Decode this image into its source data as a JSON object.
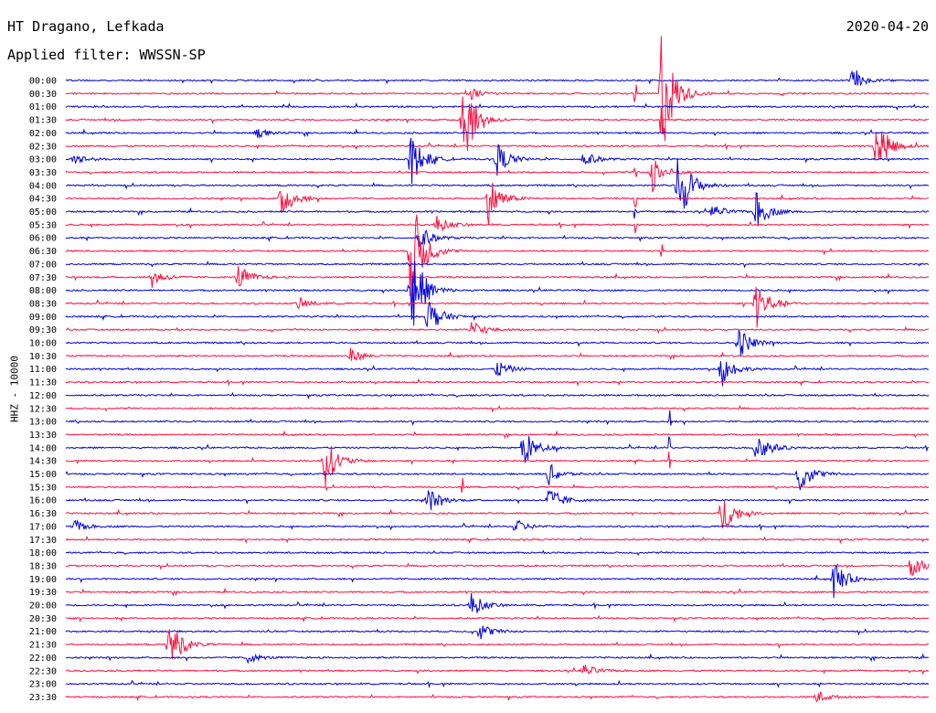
{
  "header": {
    "station": "HT Dragano, Lefkada",
    "filter": "Applied filter: WWSSN-SP",
    "date": "2020-04-20"
  },
  "side_label": "HHZ - 10000",
  "chart_data": {
    "type": "helicorder",
    "title": "HT Dragano, Lefkada",
    "subtitle": "Applied filter: WWSSN-SP",
    "date": "2020-04-20",
    "ylabel": "HHZ - 10000",
    "trace_colors": [
      "#0000e0",
      "#ff1040"
    ],
    "row_labels": [
      "00:00",
      "00:30",
      "01:00",
      "01:30",
      "02:00",
      "02:30",
      "03:00",
      "03:30",
      "04:00",
      "04:30",
      "05:00",
      "05:30",
      "06:00",
      "06:30",
      "07:00",
      "07:30",
      "08:00",
      "08:30",
      "09:00",
      "09:30",
      "10:00",
      "10:30",
      "11:00",
      "11:30",
      "12:00",
      "12:30",
      "13:00",
      "13:30",
      "14:00",
      "14:30",
      "15:00",
      "15:30",
      "16:00",
      "16:30",
      "17:00",
      "17:30",
      "18:00",
      "18:30",
      "19:00",
      "19:30",
      "20:00",
      "20:30",
      "21:00",
      "21:30",
      "22:00",
      "22:30",
      "23:00",
      "23:30"
    ],
    "events": [
      {
        "row": 0,
        "pos": 0.91,
        "amp": 14
      },
      {
        "row": 1,
        "pos": 0.69,
        "amp": 78
      },
      {
        "row": 1,
        "pos": 0.47,
        "amp": 6
      },
      {
        "row": 3,
        "pos": 0.46,
        "amp": 55
      },
      {
        "row": 4,
        "pos": 0.22,
        "amp": 6
      },
      {
        "row": 5,
        "pos": 0.94,
        "amp": 32
      },
      {
        "row": 6,
        "pos": 0.5,
        "amp": 18
      },
      {
        "row": 6,
        "pos": 0.6,
        "amp": 9
      },
      {
        "row": 6,
        "pos": 0.01,
        "amp": 7
      },
      {
        "row": 6,
        "pos": 0.4,
        "amp": 30
      },
      {
        "row": 7,
        "pos": 0.68,
        "amp": 22
      },
      {
        "row": 8,
        "pos": 0.71,
        "amp": 45
      },
      {
        "row": 9,
        "pos": 0.25,
        "amp": 22
      },
      {
        "row": 9,
        "pos": 0.49,
        "amp": 28
      },
      {
        "row": 10,
        "pos": 0.8,
        "amp": 22
      },
      {
        "row": 10,
        "pos": 0.75,
        "amp": 8
      },
      {
        "row": 11,
        "pos": 0.43,
        "amp": 10
      },
      {
        "row": 12,
        "pos": 0.41,
        "amp": 14
      },
      {
        "row": 13,
        "pos": 0.4,
        "amp": 70
      },
      {
        "row": 15,
        "pos": 0.1,
        "amp": 10
      },
      {
        "row": 15,
        "pos": 0.2,
        "amp": 14
      },
      {
        "row": 16,
        "pos": 0.4,
        "amp": 60
      },
      {
        "row": 17,
        "pos": 0.8,
        "amp": 30
      },
      {
        "row": 17,
        "pos": 0.27,
        "amp": 7
      },
      {
        "row": 18,
        "pos": 0.42,
        "amp": 22
      },
      {
        "row": 19,
        "pos": 0.47,
        "amp": 12
      },
      {
        "row": 20,
        "pos": 0.78,
        "amp": 18
      },
      {
        "row": 21,
        "pos": 0.33,
        "amp": 8
      },
      {
        "row": 22,
        "pos": 0.5,
        "amp": 10
      },
      {
        "row": 22,
        "pos": 0.76,
        "amp": 18
      },
      {
        "row": 28,
        "pos": 0.53,
        "amp": 22
      },
      {
        "row": 28,
        "pos": 0.8,
        "amp": 22
      },
      {
        "row": 29,
        "pos": 0.3,
        "amp": 30
      },
      {
        "row": 30,
        "pos": 0.56,
        "amp": 12
      },
      {
        "row": 30,
        "pos": 0.85,
        "amp": 22
      },
      {
        "row": 32,
        "pos": 0.42,
        "amp": 14
      },
      {
        "row": 32,
        "pos": 0.56,
        "amp": 16
      },
      {
        "row": 33,
        "pos": 0.76,
        "amp": 24
      },
      {
        "row": 34,
        "pos": 0.01,
        "amp": 7
      },
      {
        "row": 34,
        "pos": 0.52,
        "amp": 9
      },
      {
        "row": 37,
        "pos": 0.98,
        "amp": 14
      },
      {
        "row": 38,
        "pos": 0.89,
        "amp": 22
      },
      {
        "row": 40,
        "pos": 0.47,
        "amp": 14
      },
      {
        "row": 42,
        "pos": 0.48,
        "amp": 10
      },
      {
        "row": 43,
        "pos": 0.12,
        "amp": 30
      },
      {
        "row": 44,
        "pos": 0.21,
        "amp": 6
      },
      {
        "row": 45,
        "pos": 0.6,
        "amp": 8
      },
      {
        "row": 47,
        "pos": 0.87,
        "amp": 7
      }
    ],
    "spikes": [
      {
        "row": 1,
        "pos": 0.66,
        "amp": 24
      },
      {
        "row": 3,
        "pos": 0.69,
        "amp": 22
      },
      {
        "row": 7,
        "pos": 0.66,
        "amp": 6
      },
      {
        "row": 9,
        "pos": 0.66,
        "amp": 12
      },
      {
        "row": 10,
        "pos": 0.66,
        "amp": 10
      },
      {
        "row": 11,
        "pos": 0.66,
        "amp": 10
      },
      {
        "row": 13,
        "pos": 0.69,
        "amp": 8
      },
      {
        "row": 26,
        "pos": 0.7,
        "amp": 20
      },
      {
        "row": 28,
        "pos": 0.7,
        "amp": 18
      },
      {
        "row": 29,
        "pos": 0.7,
        "amp": 10
      },
      {
        "row": 31,
        "pos": 0.46,
        "amp": 12
      },
      {
        "row": 32,
        "pos": 0.84,
        "amp": 12
      }
    ]
  }
}
